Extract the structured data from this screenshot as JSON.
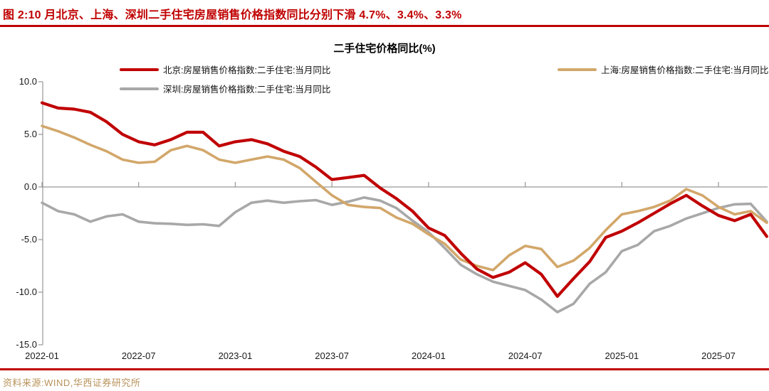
{
  "figure": {
    "title": "图 2:10 月北京、上海、深圳二手住宅房屋销售价格指数同比分别下滑 4.7%、3.4%、3.3%",
    "source": "资料来源:WIND,华西证券研究所",
    "accent_color": "#C00000",
    "source_text_color": "#B9935A"
  },
  "chart_data": {
    "type": "line",
    "title": "二手住宅价格同比(%)",
    "x": [
      "2022-01",
      "2022-02",
      "2022-03",
      "2022-04",
      "2022-05",
      "2022-06",
      "2022-07",
      "2022-08",
      "2022-09",
      "2022-10",
      "2022-11",
      "2022-12",
      "2023-01",
      "2023-02",
      "2023-03",
      "2023-04",
      "2023-05",
      "2023-06",
      "2023-07",
      "2023-08",
      "2023-09",
      "2023-10",
      "2023-11",
      "2023-12",
      "2024-01",
      "2024-02",
      "2024-03",
      "2024-04",
      "2024-05",
      "2024-06",
      "2024-07",
      "2024-08",
      "2024-09",
      "2024-10",
      "2024-11",
      "2024-12",
      "2025-01",
      "2025-02",
      "2025-03",
      "2025-04",
      "2025-05",
      "2025-06",
      "2025-07",
      "2025-08",
      "2025-09",
      "2025-10"
    ],
    "series": [
      {
        "name": "北京:房屋销售价格指数:二手住宅:当月同比",
        "color": "#C00000",
        "stroke_width": 4.2,
        "values": [
          8.0,
          7.5,
          7.4,
          7.1,
          6.2,
          5.0,
          4.3,
          4.0,
          4.5,
          5.2,
          5.2,
          3.9,
          4.3,
          4.5,
          4.1,
          3.4,
          2.9,
          1.9,
          0.7,
          0.9,
          1.1,
          -0.1,
          -1.1,
          -2.3,
          -3.9,
          -4.6,
          -6.3,
          -7.8,
          -8.6,
          -8.1,
          -7.2,
          -8.3,
          -10.4,
          -8.7,
          -7.1,
          -4.8,
          -4.2,
          -3.4,
          -2.5,
          -1.6,
          -0.8,
          -1.8,
          -2.7,
          -3.2,
          -2.6,
          -4.7
        ]
      },
      {
        "name": "上海:房屋销售价格指数:二手住宅:当月同比",
        "color": "#D2A76A",
        "stroke_width": 3.6,
        "values": [
          5.8,
          5.3,
          4.7,
          4.0,
          3.4,
          2.6,
          2.3,
          2.4,
          3.5,
          3.9,
          3.5,
          2.6,
          2.3,
          2.6,
          2.9,
          2.6,
          1.8,
          0.5,
          -0.8,
          -1.7,
          -1.9,
          -2.0,
          -2.9,
          -3.5,
          -4.5,
          -5.4,
          -6.9,
          -7.5,
          -7.9,
          -6.5,
          -5.6,
          -5.9,
          -7.6,
          -7.0,
          -5.8,
          -4.1,
          -2.6,
          -2.3,
          -1.9,
          -1.3,
          -0.2,
          -0.8,
          -1.9,
          -2.6,
          -2.3,
          -3.4
        ]
      },
      {
        "name": "深圳:房屋销售价格指数:二手住宅:当月同比",
        "color": "#A8A8A8",
        "stroke_width": 3.6,
        "values": [
          -1.5,
          -2.3,
          -2.6,
          -3.3,
          -2.8,
          -2.6,
          -3.3,
          -3.45,
          -3.5,
          -3.6,
          -3.55,
          -3.7,
          -2.4,
          -1.5,
          -1.3,
          -1.5,
          -1.35,
          -1.25,
          -1.7,
          -1.4,
          -1.0,
          -1.3,
          -2.0,
          -3.2,
          -4.3,
          -5.8,
          -7.4,
          -8.3,
          -9.0,
          -9.4,
          -9.8,
          -10.7,
          -11.9,
          -11.1,
          -9.2,
          -8.1,
          -6.1,
          -5.5,
          -4.2,
          -3.7,
          -3.0,
          -2.5,
          -2.0,
          -1.65,
          -1.6,
          -3.3
        ]
      }
    ],
    "y_axis": {
      "min": -15,
      "max": 10,
      "tick_values": [
        10,
        5,
        0,
        -5,
        -10,
        -15
      ],
      "tick_labels": [
        "10.0",
        "5.0",
        "0.0",
        "-5.0",
        "-10.0",
        "-15.0"
      ]
    },
    "x_axis": {
      "tick_month_indices": [
        0,
        6,
        12,
        18,
        24,
        30,
        36,
        42
      ],
      "tick_labels": [
        "2022-01",
        "2022-07",
        "2023-01",
        "2023-07",
        "2024-01",
        "2024-07",
        "2025-01",
        "2025-07"
      ]
    },
    "grid": "zero-line-only",
    "legend_position": "top",
    "axis_color": "#969696"
  }
}
